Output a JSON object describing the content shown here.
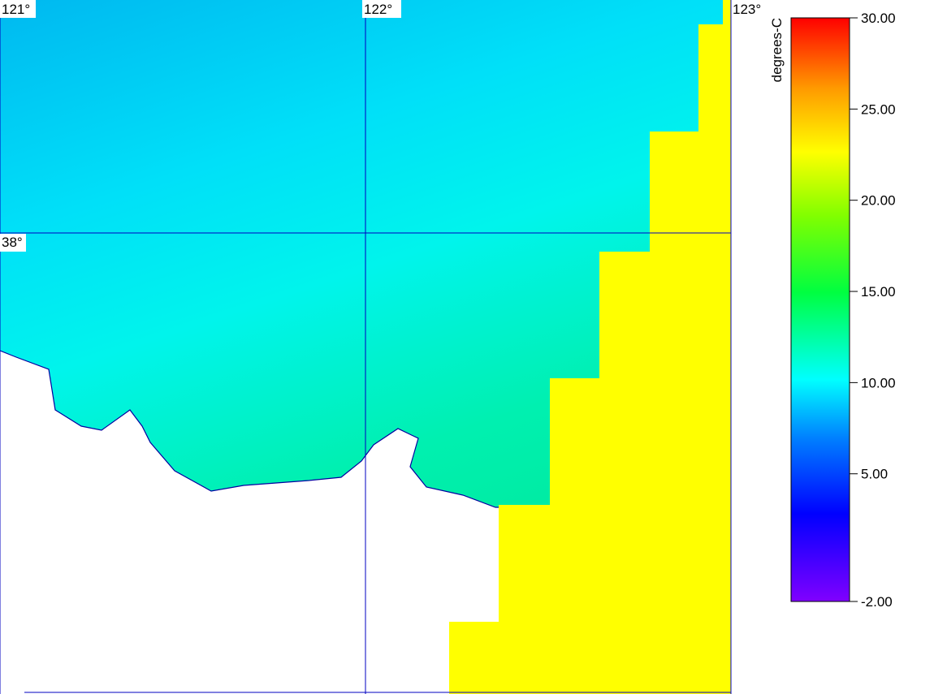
{
  "map": {
    "grid_labels": {
      "longitudes": [
        "121°",
        "122°",
        "123°"
      ],
      "latitudes": [
        "38°"
      ]
    },
    "colorbar": {
      "unit": "degrees-C",
      "range": [
        -2,
        30
      ],
      "ticks": [
        {
          "value": 30,
          "label": "30.00"
        },
        {
          "value": 25,
          "label": "25.00"
        },
        {
          "value": 20,
          "label": "20.00"
        },
        {
          "value": 15,
          "label": "15.00"
        },
        {
          "value": 10,
          "label": "10.00"
        },
        {
          "value": 5,
          "label": "5.00"
        },
        {
          "value": -2,
          "label": "-2.00"
        }
      ]
    }
  }
}
